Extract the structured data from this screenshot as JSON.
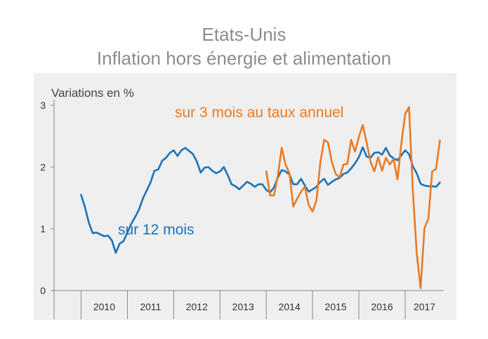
{
  "chart_data": {
    "type": "line",
    "title": "Etats-Unis",
    "subtitle": "Inflation hors énergie et alimentation",
    "ylabel": "Variations en %",
    "xlabel": "",
    "ylim": [
      0,
      3
    ],
    "yticks": [
      "0",
      "1",
      "2",
      "3"
    ],
    "x_range": [
      "2009-06",
      "2017-11"
    ],
    "x_categories": [
      "2010",
      "2011",
      "2012",
      "2013",
      "2014",
      "2015",
      "2016",
      "2017"
    ],
    "grid": false,
    "colors": {
      "sur_12_mois": "#1a72b9",
      "sur_3_mois": "#ea7a22",
      "axis": "#888888",
      "panel": "#efefef",
      "title": "#8c8c8c"
    },
    "series": [
      {
        "name": "sur 12 mois",
        "color": "#1a72b9",
        "points": [
          [
            "2010-01",
            1.55
          ],
          [
            "2010-02",
            1.35
          ],
          [
            "2010-03",
            1.1
          ],
          [
            "2010-04",
            0.93
          ],
          [
            "2010-05",
            0.94
          ],
          [
            "2010-06",
            0.91
          ],
          [
            "2010-07",
            0.88
          ],
          [
            "2010-08",
            0.89
          ],
          [
            "2010-09",
            0.81
          ],
          [
            "2010-10",
            0.61
          ],
          [
            "2010-11",
            0.76
          ],
          [
            "2010-12",
            0.8
          ],
          [
            "2011-01",
            0.94
          ],
          [
            "2011-02",
            1.08
          ],
          [
            "2011-03",
            1.19
          ],
          [
            "2011-04",
            1.31
          ],
          [
            "2011-05",
            1.49
          ],
          [
            "2011-06",
            1.62
          ],
          [
            "2011-07",
            1.75
          ],
          [
            "2011-08",
            1.94
          ],
          [
            "2011-09",
            1.96
          ],
          [
            "2011-10",
            2.1
          ],
          [
            "2011-11",
            2.15
          ],
          [
            "2011-12",
            2.23
          ],
          [
            "2012-01",
            2.27
          ],
          [
            "2012-02",
            2.18
          ],
          [
            "2012-03",
            2.27
          ],
          [
            "2012-04",
            2.31
          ],
          [
            "2012-05",
            2.26
          ],
          [
            "2012-06",
            2.21
          ],
          [
            "2012-07",
            2.09
          ],
          [
            "2012-08",
            1.91
          ],
          [
            "2012-09",
            1.99
          ],
          [
            "2012-10",
            2.0
          ],
          [
            "2012-11",
            1.94
          ],
          [
            "2012-12",
            1.9
          ],
          [
            "2013-01",
            1.93
          ],
          [
            "2013-02",
            2.0
          ],
          [
            "2013-03",
            1.87
          ],
          [
            "2013-04",
            1.72
          ],
          [
            "2013-05",
            1.69
          ],
          [
            "2013-06",
            1.64
          ],
          [
            "2013-07",
            1.7
          ],
          [
            "2013-08",
            1.76
          ],
          [
            "2013-09",
            1.73
          ],
          [
            "2013-10",
            1.68
          ],
          [
            "2013-11",
            1.72
          ],
          [
            "2013-12",
            1.72
          ],
          [
            "2014-01",
            1.63
          ],
          [
            "2014-02",
            1.59
          ],
          [
            "2014-03",
            1.67
          ],
          [
            "2014-04",
            1.83
          ],
          [
            "2014-05",
            1.95
          ],
          [
            "2014-06",
            1.93
          ],
          [
            "2014-07",
            1.88
          ],
          [
            "2014-08",
            1.72
          ],
          [
            "2014-09",
            1.72
          ],
          [
            "2014-10",
            1.81
          ],
          [
            "2014-11",
            1.7
          ],
          [
            "2014-12",
            1.6
          ],
          [
            "2015-01",
            1.64
          ],
          [
            "2015-02",
            1.68
          ],
          [
            "2015-03",
            1.76
          ],
          [
            "2015-04",
            1.81
          ],
          [
            "2015-05",
            1.71
          ],
          [
            "2015-06",
            1.76
          ],
          [
            "2015-07",
            1.8
          ],
          [
            "2015-08",
            1.82
          ],
          [
            "2015-09",
            1.89
          ],
          [
            "2015-10",
            1.91
          ],
          [
            "2015-11",
            1.98
          ],
          [
            "2015-12",
            2.06
          ],
          [
            "2016-01",
            2.16
          ],
          [
            "2016-02",
            2.32
          ],
          [
            "2016-03",
            2.17
          ],
          [
            "2016-04",
            2.15
          ],
          [
            "2016-05",
            2.23
          ],
          [
            "2016-06",
            2.24
          ],
          [
            "2016-07",
            2.2
          ],
          [
            "2016-08",
            2.31
          ],
          [
            "2016-09",
            2.19
          ],
          [
            "2016-10",
            2.14
          ],
          [
            "2016-11",
            2.11
          ],
          [
            "2016-12",
            2.19
          ],
          [
            "2017-01",
            2.27
          ],
          [
            "2017-02",
            2.21
          ],
          [
            "2017-03",
            2.01
          ],
          [
            "2017-04",
            1.9
          ],
          [
            "2017-05",
            1.73
          ],
          [
            "2017-06",
            1.7
          ],
          [
            "2017-07",
            1.69
          ],
          [
            "2017-08",
            1.69
          ],
          [
            "2017-09",
            1.68
          ],
          [
            "2017-10",
            1.75
          ]
        ]
      },
      {
        "name": "sur 3 mois au taux annuel",
        "color": "#ea7a22",
        "points": [
          [
            "2014-01",
            1.93
          ],
          [
            "2014-02",
            1.54
          ],
          [
            "2014-03",
            1.54
          ],
          [
            "2014-04",
            1.86
          ],
          [
            "2014-05",
            2.31
          ],
          [
            "2014-06",
            2.04
          ],
          [
            "2014-07",
            1.9
          ],
          [
            "2014-08",
            1.36
          ],
          [
            "2014-09",
            1.49
          ],
          [
            "2014-10",
            1.6
          ],
          [
            "2014-11",
            1.68
          ],
          [
            "2014-12",
            1.38
          ],
          [
            "2015-01",
            1.28
          ],
          [
            "2015-02",
            1.46
          ],
          [
            "2015-03",
            2.07
          ],
          [
            "2015-04",
            2.44
          ],
          [
            "2015-05",
            2.4
          ],
          [
            "2015-06",
            2.08
          ],
          [
            "2015-07",
            1.89
          ],
          [
            "2015-08",
            1.83
          ],
          [
            "2015-09",
            2.04
          ],
          [
            "2015-10",
            2.05
          ],
          [
            "2015-11",
            2.44
          ],
          [
            "2015-12",
            2.25
          ],
          [
            "2016-01",
            2.49
          ],
          [
            "2016-02",
            2.68
          ],
          [
            "2016-03",
            2.4
          ],
          [
            "2016-04",
            2.09
          ],
          [
            "2016-05",
            1.93
          ],
          [
            "2016-06",
            2.16
          ],
          [
            "2016-07",
            1.94
          ],
          [
            "2016-08",
            2.15
          ],
          [
            "2016-09",
            2.04
          ],
          [
            "2016-10",
            2.13
          ],
          [
            "2016-11",
            1.8
          ],
          [
            "2016-12",
            2.38
          ],
          [
            "2017-01",
            2.86
          ],
          [
            "2017-02",
            2.97
          ],
          [
            "2017-03",
            1.61
          ],
          [
            "2017-04",
            0.6
          ],
          [
            "2017-05",
            0.04
          ],
          [
            "2017-06",
            1.01
          ],
          [
            "2017-07",
            1.16
          ],
          [
            "2017-08",
            1.93
          ],
          [
            "2017-09",
            1.97
          ],
          [
            "2017-10",
            2.43
          ]
        ]
      }
    ],
    "annotations": [
      {
        "text": "sur 3 mois au taux annuel",
        "series": "sur 3 mois au taux annuel"
      },
      {
        "text": "sur 12 mois",
        "series": "sur 12 mois"
      }
    ]
  }
}
